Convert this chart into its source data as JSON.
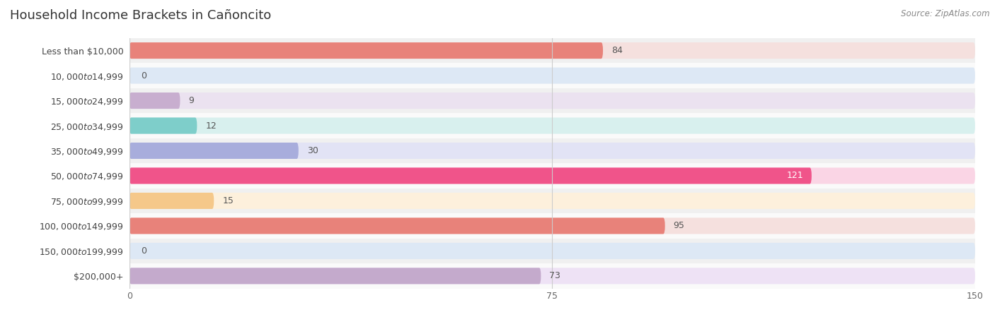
{
  "title": "Household Income Brackets in Cañoncito",
  "source": "Source: ZipAtlas.com",
  "categories": [
    "Less than $10,000",
    "$10,000 to $14,999",
    "$15,000 to $24,999",
    "$25,000 to $34,999",
    "$35,000 to $49,999",
    "$50,000 to $74,999",
    "$75,000 to $99,999",
    "$100,000 to $149,999",
    "$150,000 to $199,999",
    "$200,000+"
  ],
  "values": [
    84,
    0,
    9,
    12,
    30,
    121,
    15,
    95,
    0,
    73
  ],
  "bar_colors": [
    "#E8827A",
    "#A8C3DF",
    "#C8AECF",
    "#7ECECA",
    "#A8ADDC",
    "#F0548A",
    "#F5C88A",
    "#E8827A",
    "#A8C3DF",
    "#C4AACC"
  ],
  "bar_bg_colors": [
    "#F5E0DE",
    "#DDE8F5",
    "#EBE2F0",
    "#D8F0EE",
    "#E2E3F5",
    "#FAD5E5",
    "#FDF0DC",
    "#F5E0DE",
    "#DDE8F5",
    "#EEE2F5"
  ],
  "xlim": [
    0,
    150
  ],
  "xticks": [
    0,
    75,
    150
  ],
  "background_color": "#ffffff",
  "row_colors": [
    "#f0f0f0",
    "#fafafa"
  ]
}
